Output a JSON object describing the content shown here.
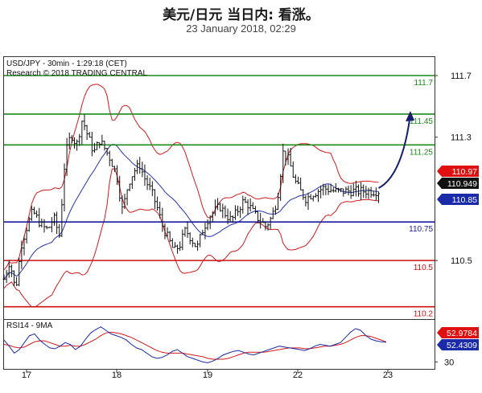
{
  "header": {
    "title": "美元/日元 当日内: 看涨。",
    "date": "23 January 2018, 02:29"
  },
  "chart_data": {
    "type": "line",
    "title": "USD/JPY - 30min - 1:29:18 (CET)",
    "subtitle": "Research © 2018 TRADING CENTRAL",
    "x_ticks": [
      "17",
      "18",
      "19",
      "22",
      "23"
    ],
    "y_ticks": [
      111.7,
      111.3,
      110.5
    ],
    "ylim": [
      110.12,
      111.82
    ],
    "levels": [
      {
        "value": 111.7,
        "label": "111.7",
        "color": "#1a8a1a"
      },
      {
        "value": 111.45,
        "label": "111.45",
        "color": "#1a8a1a"
      },
      {
        "value": 111.25,
        "label": "111.25",
        "color": "#1a8a1a"
      },
      {
        "value": 110.75,
        "label": "110.75",
        "color": "#1a1aa0"
      },
      {
        "value": 110.5,
        "label": "110.5",
        "color": "#cc1111"
      },
      {
        "value": 110.2,
        "label": "110.2",
        "color": "#cc1111"
      }
    ],
    "price_tags": [
      {
        "value": 110.97,
        "label": "110.97",
        "bg": "#e01010",
        "fg": "#ffffff"
      },
      {
        "value": 110.949,
        "label": "110.949",
        "bg": "#111111",
        "fg": "#ffffff"
      },
      {
        "value": 110.85,
        "label": "110.85",
        "bg": "#1a2aa8",
        "fg": "#ffffff"
      }
    ],
    "series": [
      {
        "color": "#111111",
        "x": [
          0,
          3,
          6,
          9,
          12,
          15,
          18,
          20,
          23,
          26,
          29,
          32,
          35,
          38,
          41,
          44,
          47,
          50,
          53,
          56,
          59,
          62,
          65,
          68,
          71,
          74,
          77,
          80,
          83,
          86,
          89,
          92,
          95,
          98
        ],
        "y": [
          110.38,
          110.5,
          110.3,
          110.6,
          110.72,
          110.82,
          110.76,
          110.72,
          110.7,
          110.78,
          110.66,
          111.18,
          111.32,
          111.25,
          111.42,
          111.3,
          111.2,
          111.28,
          111.22,
          111.15,
          111.05,
          110.82,
          111.0,
          111.08,
          111.12,
          111.02,
          110.95,
          110.85,
          110.72,
          110.64,
          110.56,
          110.6,
          110.7,
          110.64
        ]
      },
      {
        "color": "#111111",
        "x": [
          101,
          104,
          107,
          110,
          113,
          116,
          119,
          122,
          125,
          128,
          131,
          134,
          137,
          140,
          143,
          146,
          149,
          152,
          155,
          158,
          161,
          164,
          167,
          170,
          173,
          176,
          179,
          182,
          185,
          188,
          191,
          194,
          197,
          200
        ],
        "y": [
          110.58,
          110.7,
          110.78,
          110.82,
          110.85,
          110.8,
          110.76,
          110.82,
          110.88,
          110.86,
          110.8,
          110.76,
          110.72,
          110.78,
          110.9,
          111.2,
          111.15,
          111.02,
          110.95,
          110.9,
          110.93,
          110.95,
          110.97,
          110.96,
          110.95,
          110.95,
          110.95,
          110.95,
          110.95,
          110.95,
          110.95,
          110.95,
          110.949,
          110.949
        ]
      }
    ],
    "rsi": {
      "label": "RSI14 - 9MA",
      "ylim": [
        22,
        78
      ],
      "y_ticks": [
        30
      ],
      "tags": [
        {
          "value": 52.9784,
          "label": "52.9784",
          "bg": "#e01010",
          "fg": "#ffffff"
        },
        {
          "value": 52.4309,
          "label": "52.4309",
          "bg": "#1a2aa8",
          "fg": "#ffffff"
        }
      ],
      "rsi_values": [
        55,
        48,
        40,
        44,
        52,
        60,
        62,
        55,
        50,
        46,
        45,
        48,
        52,
        50,
        44,
        48,
        56,
        63,
        67,
        70,
        66,
        62,
        60,
        58,
        55,
        50,
        46,
        44,
        40,
        36,
        34,
        35,
        38,
        42,
        44,
        40,
        36,
        34,
        32,
        30,
        29,
        31,
        34,
        38,
        40,
        42,
        43,
        41,
        39,
        38,
        40,
        42,
        44,
        46,
        48,
        47,
        46,
        45,
        44,
        43,
        45,
        48,
        50,
        49,
        48,
        50,
        52,
        58,
        64,
        68,
        66,
        60,
        56,
        54,
        53,
        52.43
      ],
      "ma_values": [
        50,
        49,
        47,
        46,
        47,
        50,
        53,
        54,
        54,
        52,
        50,
        48,
        48,
        49,
        48,
        48,
        50,
        53,
        56,
        60,
        63,
        64,
        63,
        62,
        60,
        58,
        55,
        52,
        49,
        46,
        43,
        41,
        40,
        40,
        40,
        40,
        39,
        38,
        37,
        36,
        34,
        33,
        33,
        33,
        34,
        36,
        38,
        40,
        41,
        41,
        41,
        41,
        42,
        43,
        44,
        45,
        46,
        46,
        46,
        45,
        45,
        46,
        47,
        48,
        48,
        49,
        50,
        52,
        55,
        58,
        60,
        60,
        59,
        57,
        55,
        52.98
      ]
    }
  }
}
